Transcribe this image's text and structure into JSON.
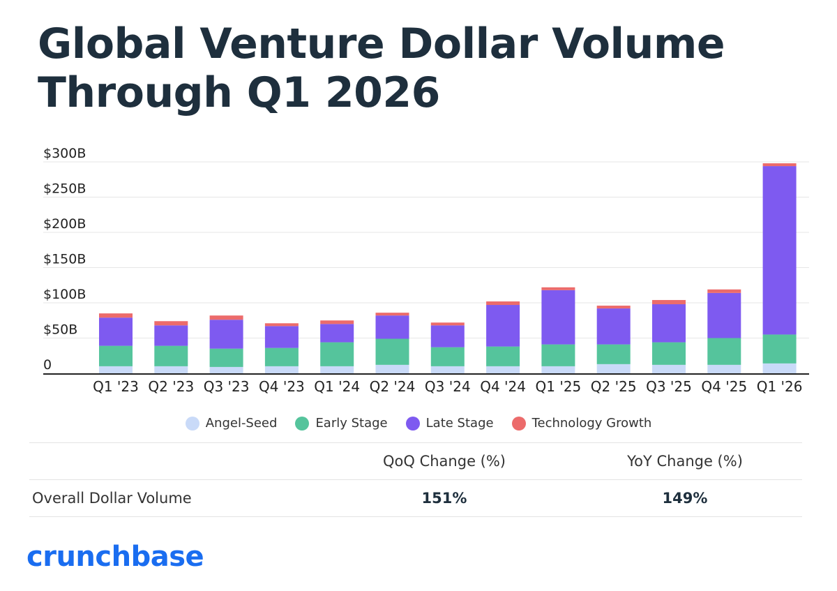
{
  "title": "Global Venture Dollar Volume Through Q1 2026",
  "colors": {
    "angel_seed": "#c9daf8",
    "early_stage": "#55c49c",
    "late_stage": "#7e5af0",
    "technology_growth": "#ec6b6b",
    "brand": "#1a6df0"
  },
  "chart_data": {
    "type": "bar",
    "stacked": true,
    "categories": [
      "Q1 '23",
      "Q2 '23",
      "Q3 '23",
      "Q4 '23",
      "Q1 '24",
      "Q2 '24",
      "Q3 '24",
      "Q4 '24",
      "Q1 '25",
      "Q2 '25",
      "Q3 '25",
      "Q4 '25",
      "Q1 '26"
    ],
    "y_ticks": [
      "0",
      "$50B",
      "$100B",
      "$150B",
      "$200B",
      "$250B",
      "$300B"
    ],
    "ylim": [
      0,
      300
    ],
    "grid": true,
    "legend_position": "bottom",
    "series": [
      {
        "name": "Angel-Seed",
        "color_key": "angel_seed",
        "values": [
          10,
          10,
          9,
          10,
          10,
          12,
          10,
          10,
          10,
          13,
          12,
          12,
          14
        ]
      },
      {
        "name": "Early Stage",
        "color_key": "early_stage",
        "values": [
          29,
          29,
          26,
          26,
          34,
          37,
          27,
          28,
          31,
          28,
          32,
          38,
          41
        ]
      },
      {
        "name": "Late Stage",
        "color_key": "late_stage",
        "values": [
          40,
          29,
          41,
          31,
          26,
          33,
          31,
          59,
          77,
          51,
          54,
          64,
          239
        ]
      },
      {
        "name": "Technology Growth",
        "color_key": "technology_growth",
        "values": [
          6,
          6,
          6,
          4,
          5,
          4,
          4,
          5,
          4,
          4,
          6,
          5,
          4
        ]
      }
    ]
  },
  "summary": {
    "headers": [
      "QoQ Change (%)",
      "YoY Change (%)"
    ],
    "rows": [
      {
        "label": "Overall Dollar Volume",
        "qoq": "151%",
        "yoy": "149%"
      }
    ]
  },
  "logo_text": "crunchbase"
}
